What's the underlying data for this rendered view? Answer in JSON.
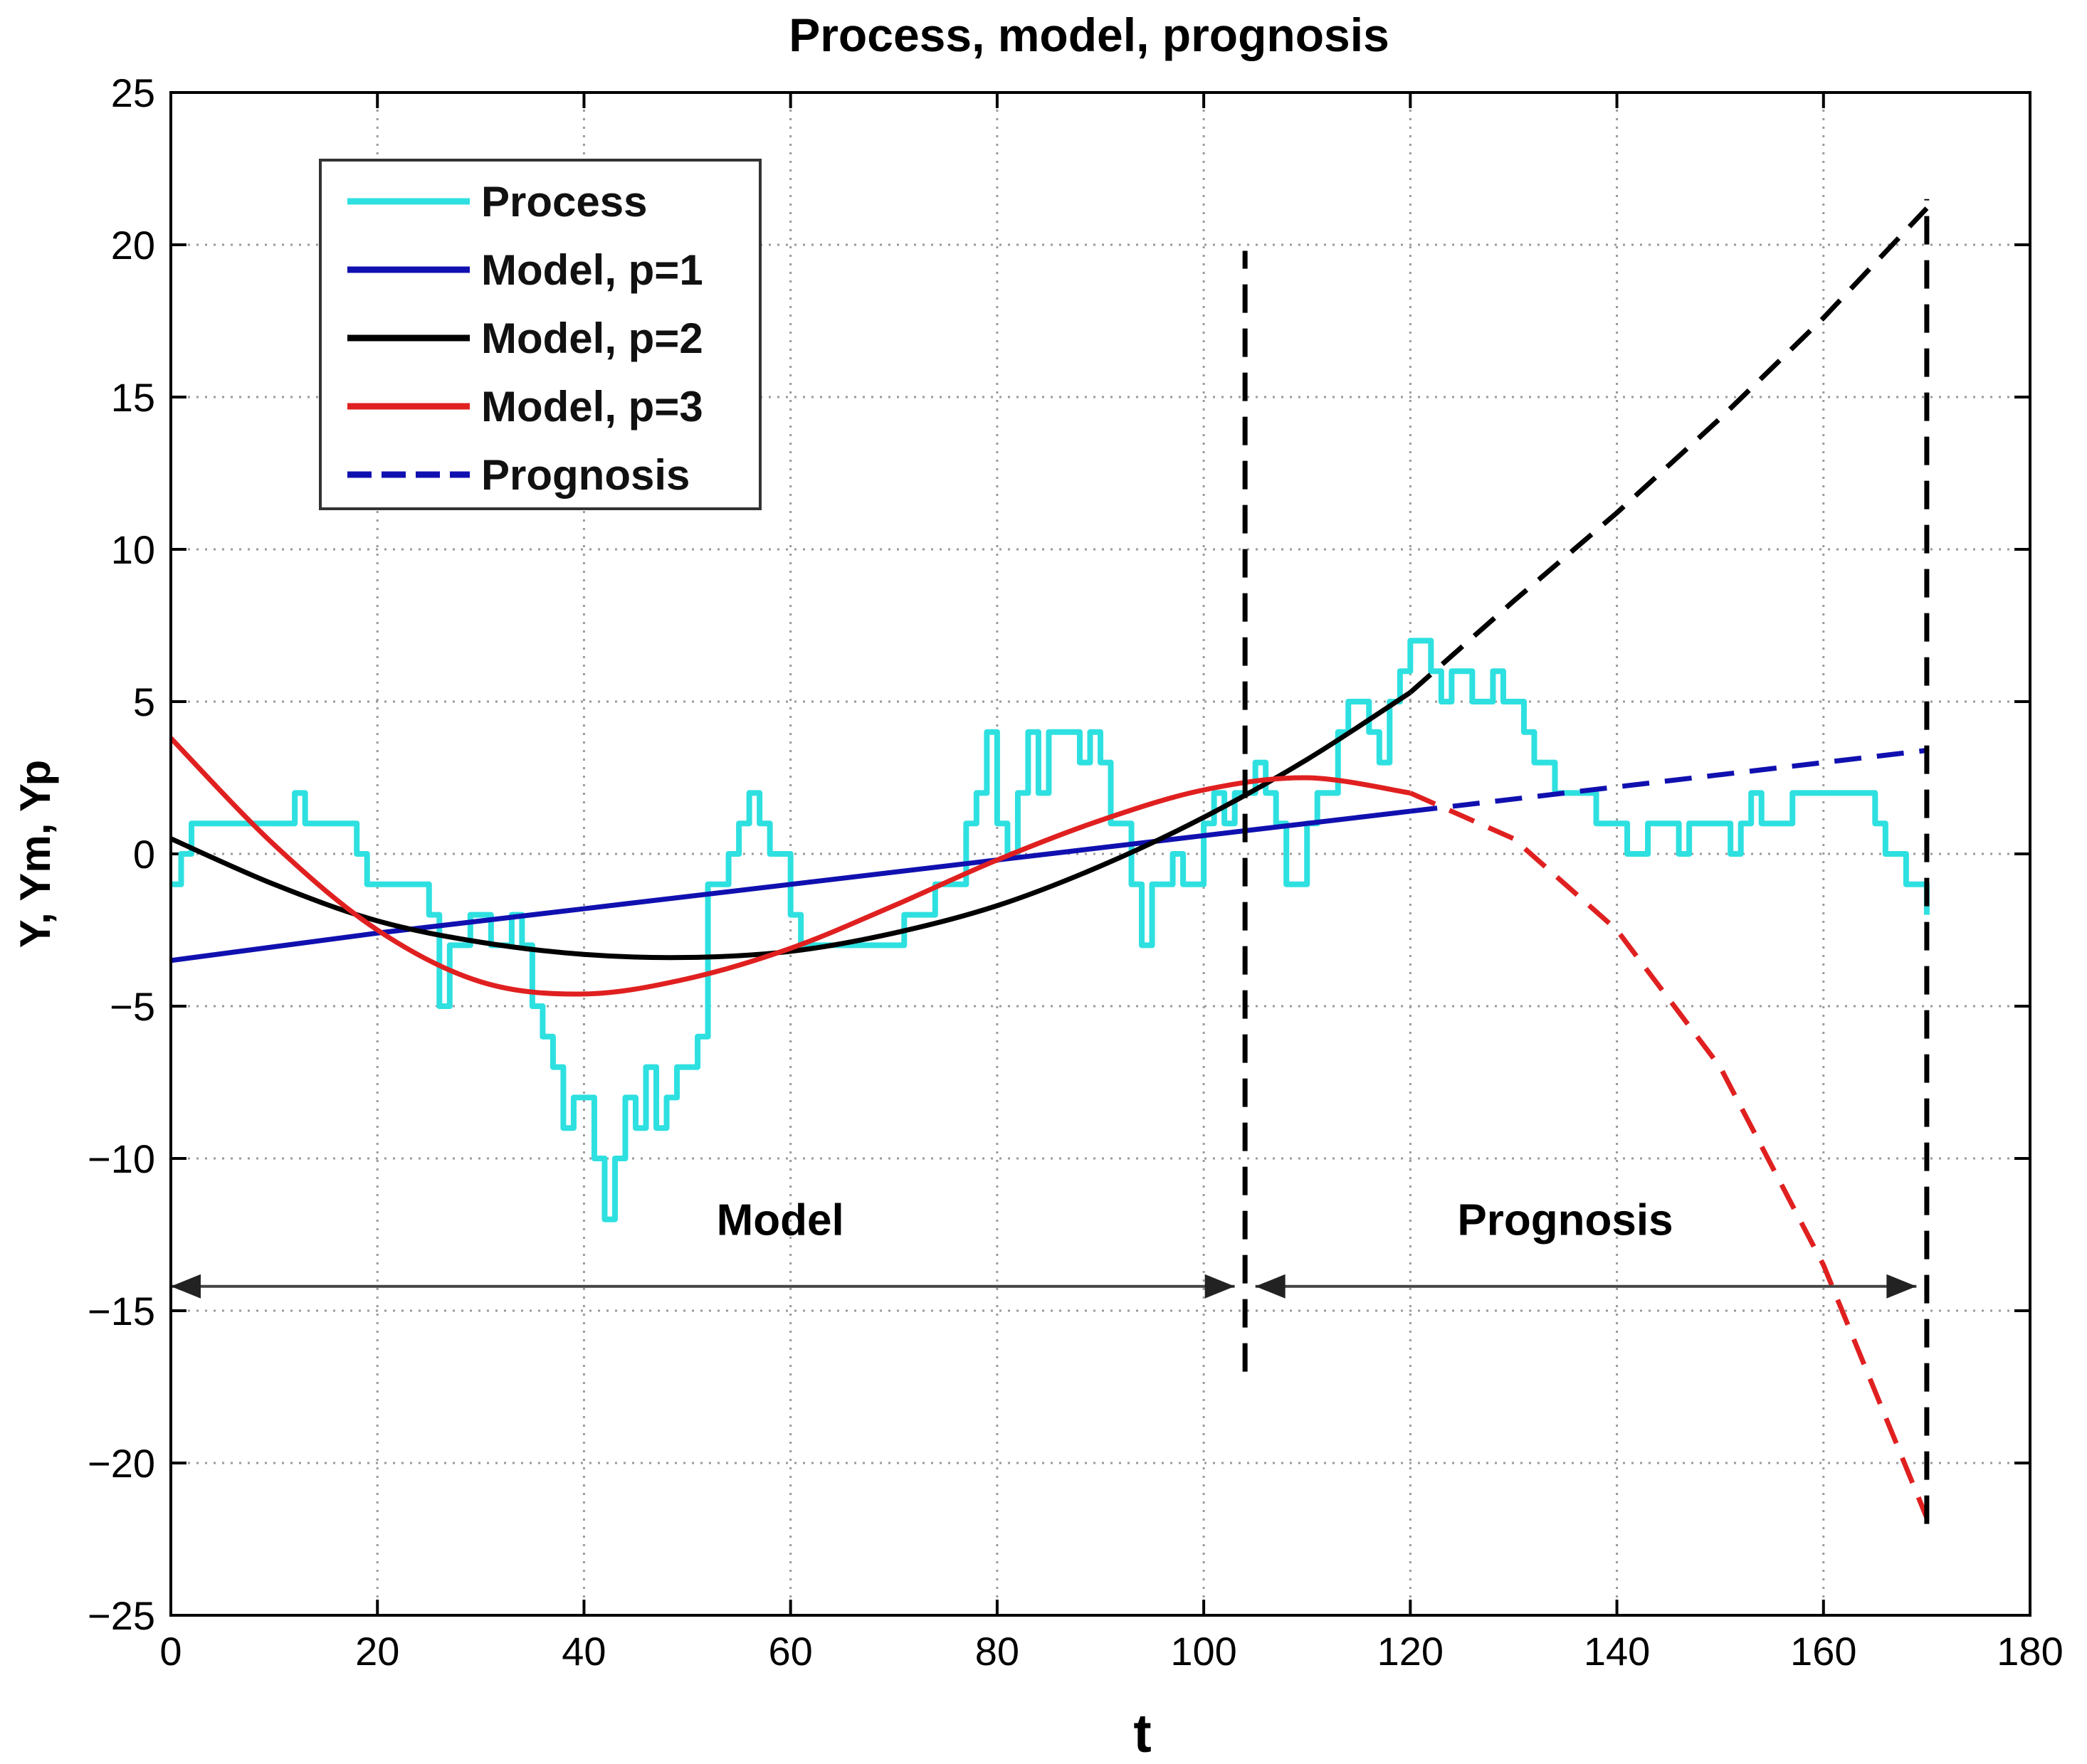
{
  "chart_data": {
    "type": "line",
    "title": "Process, model, prognosis",
    "xlabel": "t",
    "ylabel": "Y, Ym, Yp",
    "xlim": [
      0,
      180
    ],
    "ylim": [
      -25,
      25
    ],
    "xticks": [
      0,
      20,
      40,
      60,
      80,
      100,
      120,
      140,
      160,
      180
    ],
    "yticks": [
      -25,
      -20,
      -15,
      -10,
      -5,
      0,
      5,
      10,
      15,
      20,
      25
    ],
    "xtick_labels": [
      "0",
      "20",
      "40",
      "60",
      "80",
      "100",
      "120",
      "140",
      "160",
      "180"
    ],
    "ytick_labels": [
      "−25",
      "−20",
      "−15",
      "−10",
      "−5",
      "0",
      "5",
      "10",
      "15",
      "20",
      "25"
    ],
    "grid": true,
    "legend_position": "top-left",
    "legend": [
      {
        "label": "Process",
        "color": "#2ee0e0",
        "style": "solid"
      },
      {
        "label": "Model, p=1",
        "color": "#1010b0",
        "style": "solid"
      },
      {
        "label": "Model, p=2",
        "color": "#000000",
        "style": "solid"
      },
      {
        "label": "Model, p=3",
        "color": "#e02020",
        "style": "solid"
      },
      {
        "label": "Prognosis",
        "color": "#1010b0",
        "style": "dashed"
      }
    ],
    "series": [
      {
        "name": "Process",
        "color": "#2ee0e0",
        "style": "step",
        "x": [
          0,
          1,
          2,
          3,
          4,
          5,
          6,
          7,
          8,
          9,
          10,
          11,
          12,
          13,
          14,
          15,
          16,
          17,
          18,
          19,
          20,
          21,
          22,
          23,
          24,
          25,
          26,
          27,
          28,
          29,
          30,
          31,
          32,
          33,
          34,
          35,
          36,
          37,
          38,
          39,
          40,
          41,
          42,
          43,
          44,
          45,
          46,
          47,
          48,
          49,
          50,
          51,
          52,
          53,
          54,
          55,
          56,
          57,
          58,
          59,
          60,
          61,
          62,
          63,
          64,
          65,
          66,
          67,
          68,
          69,
          70,
          71,
          72,
          73,
          74,
          75,
          76,
          77,
          78,
          79,
          80,
          81,
          82,
          83,
          84,
          85,
          86,
          87,
          88,
          89,
          90,
          91,
          92,
          93,
          94,
          95,
          96,
          97,
          98,
          99,
          100,
          101,
          102,
          103,
          104,
          105,
          106,
          107,
          108,
          109,
          110,
          111,
          112,
          113,
          114,
          115,
          116,
          117,
          118,
          119,
          120,
          121,
          122,
          123,
          124,
          125,
          126,
          127,
          128,
          129,
          130,
          131,
          132,
          133,
          134,
          135,
          136,
          137,
          138,
          139,
          140,
          141,
          142,
          143,
          144,
          145,
          146,
          147,
          148,
          149,
          150,
          151,
          152,
          153,
          154,
          155,
          156,
          157,
          158,
          159,
          160,
          161,
          162,
          163,
          164,
          165,
          166,
          167,
          168,
          169,
          170
        ],
        "values": [
          -1,
          0,
          1,
          1,
          1,
          1,
          1,
          1,
          1,
          1,
          1,
          1,
          2,
          1,
          1,
          1,
          1,
          1,
          0,
          -1,
          -1,
          -1,
          -1,
          -1,
          -1,
          -2,
          -5,
          -3,
          -3,
          -2,
          -2,
          -3,
          -3,
          -2,
          -3,
          -5,
          -6,
          -7,
          -9,
          -8,
          -8,
          -10,
          -12,
          -10,
          -8,
          -9,
          -7,
          -9,
          -8,
          -7,
          -7,
          -6,
          -1,
          -1,
          0,
          1,
          2,
          1,
          0,
          0,
          -2,
          -3,
          -3,
          -3,
          -3,
          -3,
          -3,
          -3,
          -3,
          -3,
          -3,
          -2,
          -2,
          -2,
          -1,
          -1,
          -1,
          1,
          2,
          4,
          1,
          0,
          2,
          4,
          2,
          4,
          4,
          4,
          3,
          4,
          3,
          1,
          1,
          -1,
          -3,
          -1,
          -1,
          0,
          -1,
          -1,
          1,
          2,
          1,
          2,
          2,
          3,
          2,
          1,
          -1,
          -1,
          1,
          2,
          2,
          4,
          5,
          5,
          4,
          3,
          5,
          6,
          7,
          7,
          6,
          5,
          6,
          6,
          5,
          5,
          6,
          5,
          5,
          4,
          3,
          3,
          2,
          2,
          2,
          2,
          1,
          1,
          1,
          0,
          0,
          1,
          1,
          1,
          0,
          1,
          1,
          1,
          1,
          0,
          1,
          2,
          1,
          1,
          1,
          2,
          2,
          2,
          2,
          2,
          2,
          2,
          2,
          1,
          0,
          0,
          -1,
          -1,
          -2
        ]
      },
      {
        "name": "Model, p=1",
        "color": "#1010b0",
        "style": "solid",
        "x": [
          0,
          20,
          40,
          60,
          80,
          100,
          120
        ],
        "values": [
          -3.5,
          -2.6,
          -1.8,
          -1.0,
          -0.2,
          0.6,
          1.4
        ]
      },
      {
        "name": "Model, p=2",
        "color": "#000000",
        "style": "solid",
        "x": [
          0,
          10,
          20,
          30,
          40,
          50,
          60,
          70,
          80,
          90,
          100,
          110,
          120
        ],
        "values": [
          0.5,
          -1.0,
          -2.2,
          -2.9,
          -3.3,
          -3.4,
          -3.2,
          -2.6,
          -1.7,
          -0.4,
          1.2,
          3.1,
          5.3
        ]
      },
      {
        "name": "Model, p=3",
        "color": "#e02020",
        "style": "solid",
        "x": [
          0,
          10,
          20,
          30,
          40,
          50,
          60,
          70,
          80,
          90,
          100,
          110,
          120
        ],
        "values": [
          3.8,
          0.3,
          -2.5,
          -4.2,
          -4.6,
          -4.1,
          -3.1,
          -1.7,
          -0.2,
          1.1,
          2.1,
          2.5,
          2.0
        ]
      },
      {
        "name": "Prognosis, p=1",
        "color": "#1010b0",
        "style": "dashed",
        "x": [
          120,
          130,
          140,
          150,
          160,
          170
        ],
        "values": [
          1.4,
          1.8,
          2.2,
          2.6,
          3.0,
          3.4
        ]
      },
      {
        "name": "Prognosis, p=2",
        "color": "#000000",
        "style": "dashed",
        "x": [
          120,
          130,
          140,
          150,
          160,
          170
        ],
        "values": [
          5.3,
          8.3,
          11.2,
          14.3,
          17.6,
          21.2
        ]
      },
      {
        "name": "Prognosis, p=3",
        "color": "#e02020",
        "style": "dashed",
        "x": [
          120,
          130,
          140,
          150,
          160,
          170
        ],
        "values": [
          2.0,
          0.5,
          -2.5,
          -7.0,
          -13.5,
          -21.8
        ]
      }
    ],
    "vlines": [
      {
        "x": 104,
        "y0": -17,
        "y1": 19.8
      },
      {
        "x": 170,
        "y0": -22,
        "y1": 21.5
      }
    ],
    "annotations": [
      {
        "text": "Model",
        "x": 59,
        "y": -12,
        "arrow": {
          "x0": 0,
          "x1": 103,
          "y": -14.2
        }
      },
      {
        "text": "Prognosis",
        "x": 135,
        "y": -12,
        "arrow": {
          "x0": 105,
          "x1": 169,
          "y": -14.2
        }
      }
    ]
  }
}
